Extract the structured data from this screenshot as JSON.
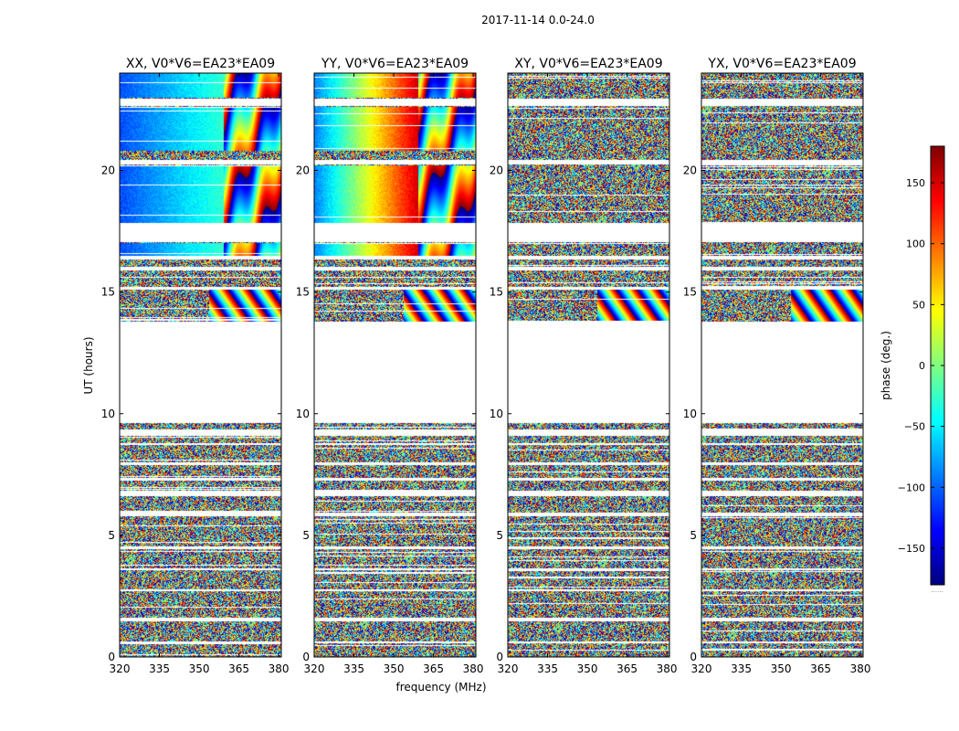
{
  "figure_title": "2017-11-14 0.0-24.0",
  "xlabel": "frequency (MHz)",
  "ylabel": "UT (hours)",
  "colorbar": {
    "label": "phase (deg.)",
    "range": [
      -180,
      180
    ],
    "ticks": [
      "150",
      "100",
      "50",
      "0",
      "−50",
      "−100",
      "−150"
    ],
    "tick_values": [
      150,
      100,
      50,
      0,
      -50,
      -100,
      -150
    ],
    "colormap": [
      "#00007f",
      "#0000ff",
      "#007fff",
      "#00ffff",
      "#7fff7f",
      "#ffff00",
      "#ff7f00",
      "#ff0000",
      "#7f0000"
    ],
    "footnote": "......"
  },
  "chart_data": [
    {
      "type": "heatmap",
      "title": "XX, V0*V6=EA23*EA09",
      "pol": "XX",
      "xlim": [
        320,
        381
      ],
      "ylim": [
        0,
        24
      ],
      "xticks": [
        320,
        335,
        350,
        365,
        380
      ],
      "yticks": [
        0,
        5,
        10,
        15,
        20
      ],
      "value": "phase (deg.)",
      "coherent_bands": [
        [
          17.8,
          20.2
        ],
        [
          16.5,
          17.0
        ],
        [
          23.0,
          24.0
        ],
        [
          20.8,
          22.6
        ]
      ]
    },
    {
      "type": "heatmap",
      "title": "YY, V0*V6=EA23*EA09",
      "pol": "YY",
      "xlim": [
        320,
        381
      ],
      "ylim": [
        0,
        24
      ],
      "xticks": [
        320,
        335,
        350,
        365,
        380
      ],
      "yticks": [
        0,
        5,
        10,
        15,
        20
      ],
      "value": "phase (deg.)",
      "coherent_bands": [
        [
          17.8,
          20.2
        ],
        [
          16.5,
          17.0
        ],
        [
          23.0,
          24.0
        ],
        [
          20.8,
          22.6
        ]
      ]
    },
    {
      "type": "heatmap",
      "title": "XY, V0*V6=EA23*EA09",
      "pol": "XY",
      "xlim": [
        320,
        381
      ],
      "ylim": [
        0,
        24
      ],
      "xticks": [
        320,
        335,
        350,
        365,
        380
      ],
      "yticks": [
        0,
        5,
        10,
        15,
        20
      ],
      "value": "phase (deg.)",
      "coherent_bands": []
    },
    {
      "type": "heatmap",
      "title": "YX, V0*V6=EA23*EA09",
      "pol": "YX",
      "xlim": [
        320,
        381
      ],
      "ylim": [
        0,
        24
      ],
      "xticks": [
        320,
        335,
        350,
        365,
        380
      ],
      "yticks": [
        0,
        5,
        10,
        15,
        20
      ],
      "value": "phase (deg.)",
      "coherent_bands": []
    }
  ],
  "data_gaps_hours": [
    [
      0.55,
      0.62
    ],
    [
      1.45,
      1.6
    ],
    [
      2.7,
      2.78
    ],
    [
      3.55,
      3.65
    ],
    [
      4.45,
      4.55
    ],
    [
      5.8,
      5.95
    ],
    [
      6.6,
      6.85
    ],
    [
      7.25,
      7.35
    ],
    [
      7.9,
      8.0
    ],
    [
      8.7,
      8.8
    ],
    [
      9.1,
      9.35
    ],
    [
      9.6,
      13.8
    ],
    [
      15.1,
      15.2
    ],
    [
      15.9,
      16.05
    ],
    [
      16.35,
      16.5
    ],
    [
      17.05,
      17.6
    ],
    [
      17.6,
      17.85
    ],
    [
      20.25,
      20.45
    ],
    [
      22.65,
      22.95
    ]
  ]
}
